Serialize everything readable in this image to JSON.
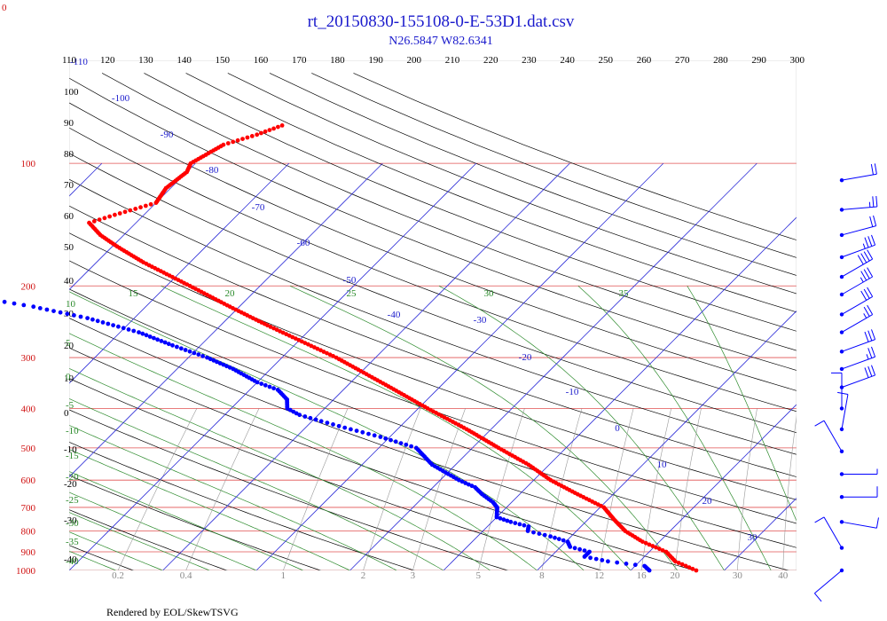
{
  "title": "rt_20150830-155108-0-E-53D1.dat.csv",
  "subtitle": "N26.5847 W82.6341",
  "corner_label": "0",
  "footer": "Rendered by EOL/SkewTSVG",
  "colors": {
    "temperature": "#ff0000",
    "dewpoint": "#0000ff",
    "isobar": "#e05050",
    "isotherm": "#3030d8",
    "dry_adiabat": "#000000",
    "moist_adiabat": "#2e8b2e",
    "mixing_ratio": "#999999",
    "wind_barb": "#0000ff",
    "title": "#1a1acc"
  },
  "chart_data": {
    "type": "skew-t",
    "axes": {
      "pressure_range_hPa": [
        1000,
        100
      ],
      "pressure_ticks": [
        "100",
        "200",
        "300",
        "400",
        "500",
        "600",
        "700",
        "800",
        "900",
        "1000"
      ],
      "top_theta_labels": [
        "110",
        "120",
        "130",
        "140",
        "150",
        "160",
        "170",
        "180",
        "190",
        "200",
        "210",
        "220",
        "230",
        "240",
        "250",
        "260",
        "270",
        "280",
        "290",
        "300"
      ],
      "isotherm_labels": [
        "-110",
        "-100",
        "-90",
        "-80",
        "-70",
        "-60",
        "-50",
        "-40",
        "-30",
        "-20",
        "-10",
        "0",
        "10",
        "20",
        "30"
      ],
      "left_theta_labels": [
        "100",
        "90",
        "80",
        "70",
        "60",
        "50",
        "40",
        "30",
        "20",
        "10",
        "0",
        "-10",
        "-20",
        "-30",
        "-40"
      ],
      "moist_adiabat_labels": [
        "15",
        "20",
        "25",
        "30",
        "35"
      ],
      "moist_adiabat_left_labels": [
        "10",
        "5",
        "0",
        "-5",
        "-10",
        "-15",
        "-20",
        "-25",
        "-30",
        "-35",
        "-40"
      ],
      "mixing_ratio_labels": [
        "0.2",
        "0.4",
        "1",
        "2",
        "3",
        "5",
        "8",
        "12",
        "16",
        "20",
        "30",
        "40"
      ]
    },
    "series": [
      {
        "label_key": "temperature",
        "points": [
          [
            1000,
            27.0
          ],
          [
            950,
            23.8
          ],
          [
            900,
            21.8
          ],
          [
            850,
            18.2
          ],
          [
            800,
            15.2
          ],
          [
            750,
            12.8
          ],
          [
            700,
            10.4
          ],
          [
            650,
            6.2
          ],
          [
            600,
            1.8
          ],
          [
            550,
            -2.2
          ],
          [
            500,
            -7.2
          ],
          [
            450,
            -12.6
          ],
          [
            400,
            -19.0
          ],
          [
            350,
            -26.0
          ],
          [
            300,
            -34.2
          ],
          [
            250,
            -45.0
          ],
          [
            225,
            -51.0
          ],
          [
            200,
            -57.5
          ],
          [
            175,
            -65.0
          ],
          [
            160,
            -69.5
          ],
          [
            150,
            -72.5
          ],
          [
            140,
            -75.0
          ],
          [
            135,
            -73.5
          ],
          [
            125,
            -70.0
          ],
          [
            115,
            -70.5
          ],
          [
            105,
            -70.0
          ],
          [
            100,
            -70.5
          ],
          [
            90,
            -69.0
          ],
          [
            85,
            -66.5
          ],
          [
            80,
            -64.5
          ]
        ]
      },
      {
        "label_key": "dewpoint",
        "points": [
          [
            1000,
            22.0
          ],
          [
            975,
            21.0
          ],
          [
            950,
            16.6
          ],
          [
            925,
            13.6
          ],
          [
            900,
            13.6
          ],
          [
            875,
            11.0
          ],
          [
            850,
            10.2
          ],
          [
            825,
            7.8
          ],
          [
            800,
            4.8
          ],
          [
            780,
            4.4
          ],
          [
            760,
            2.0
          ],
          [
            740,
            0.0
          ],
          [
            700,
            -1.0
          ],
          [
            680,
            -2.0
          ],
          [
            650,
            -4.0
          ],
          [
            625,
            -5.5
          ],
          [
            600,
            -8.0
          ],
          [
            550,
            -12.5
          ],
          [
            500,
            -16.0
          ],
          [
            470,
            -21.0
          ],
          [
            450,
            -25.0
          ],
          [
            430,
            -29.0
          ],
          [
            415,
            -32.0
          ],
          [
            400,
            -34.0
          ],
          [
            380,
            -35.0
          ],
          [
            360,
            -37.0
          ],
          [
            345,
            -40.0
          ],
          [
            320,
            -44.0
          ],
          [
            300,
            -48.0
          ],
          [
            280,
            -53.0
          ],
          [
            260,
            -58.0
          ],
          [
            240,
            -65.0
          ],
          [
            225,
            -72.0
          ],
          [
            215,
            -78.0
          ],
          [
            200,
            -86.0
          ]
        ]
      }
    ],
    "wind_barbs": [
      {
        "pressure": 110,
        "speed_kt": 20,
        "dir_deg": 80
      },
      {
        "pressure": 130,
        "speed_kt": 25,
        "dir_deg": 85
      },
      {
        "pressure": 150,
        "speed_kt": 20,
        "dir_deg": 75
      },
      {
        "pressure": 170,
        "speed_kt": 35,
        "dir_deg": 70
      },
      {
        "pressure": 190,
        "speed_kt": 40,
        "dir_deg": 60
      },
      {
        "pressure": 210,
        "speed_kt": 35,
        "dir_deg": 60
      },
      {
        "pressure": 235,
        "speed_kt": 30,
        "dir_deg": 60
      },
      {
        "pressure": 260,
        "speed_kt": 25,
        "dir_deg": 60
      },
      {
        "pressure": 290,
        "speed_kt": 30,
        "dir_deg": 70
      },
      {
        "pressure": 320,
        "speed_kt": 25,
        "dir_deg": 70
      },
      {
        "pressure": 355,
        "speed_kt": 30,
        "dir_deg": 70
      },
      {
        "pressure": 400,
        "speed_kt": 10,
        "dir_deg": 0
      },
      {
        "pressure": 450,
        "speed_kt": 10,
        "dir_deg": 10
      },
      {
        "pressure": 510,
        "speed_kt": 10,
        "dir_deg": 330
      },
      {
        "pressure": 580,
        "speed_kt": 5,
        "dir_deg": 90
      },
      {
        "pressure": 660,
        "speed_kt": 10,
        "dir_deg": 90
      },
      {
        "pressure": 760,
        "speed_kt": 10,
        "dir_deg": 100
      },
      {
        "pressure": 880,
        "speed_kt": 10,
        "dir_deg": 330
      },
      {
        "pressure": 1000,
        "speed_kt": 10,
        "dir_deg": 230
      }
    ]
  }
}
